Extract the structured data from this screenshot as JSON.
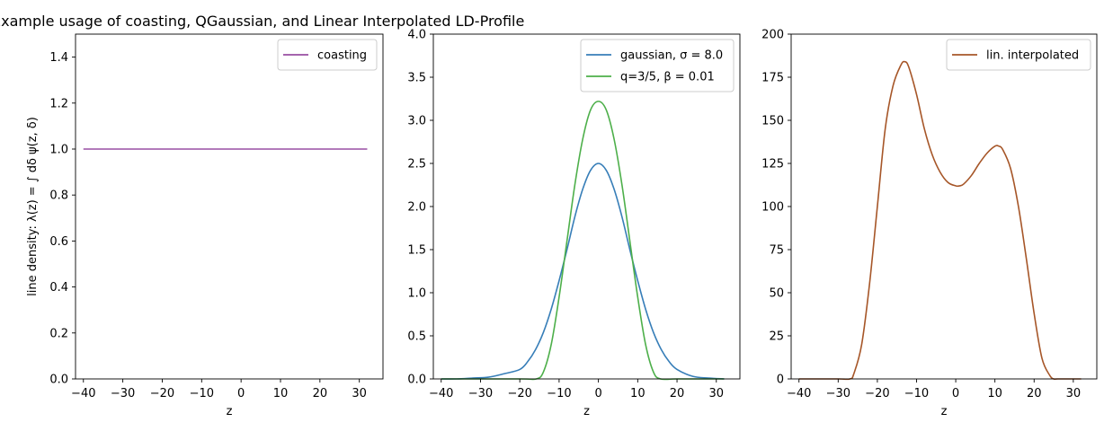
{
  "figure": {
    "title": "Example usage of coasting, QGaussian, and Linear Interpolated LD-Profile"
  },
  "chart_data": [
    {
      "type": "line",
      "xlabel": "z",
      "ylabel": "line density: λ(z) = ∫ dδ ψ(z, δ)",
      "xlim": [
        -42,
        36
      ],
      "ylim": [
        0,
        1.5
      ],
      "xticks": [
        -40,
        -30,
        -20,
        -10,
        0,
        10,
        20,
        30
      ],
      "yticks": [
        "0.0",
        "0.2",
        "0.4",
        "0.6",
        "0.8",
        "1.0",
        "1.2",
        "1.4"
      ],
      "legend": "top-right",
      "series": [
        {
          "name": "coasting",
          "color": "#984ea3",
          "x": [
            -40,
            32
          ],
          "y": [
            1.0,
            1.0
          ]
        }
      ]
    },
    {
      "type": "line",
      "xlabel": "z",
      "ylabel": "",
      "xlim": [
        -42,
        36
      ],
      "ylim": [
        0,
        4.0
      ],
      "xticks": [
        -40,
        -30,
        -20,
        -10,
        0,
        10,
        20,
        30
      ],
      "yticks": [
        "0.0",
        "0.5",
        "1.0",
        "1.5",
        "2.0",
        "2.5",
        "3.0",
        "3.5",
        "4.0"
      ],
      "legend": "top-right",
      "series": [
        {
          "name": "gaussian, σ = 8.0",
          "color": "#377eb8",
          "x": [
            -40,
            -36,
            -32,
            -28,
            -24,
            -20,
            -18,
            -16,
            -14,
            -12,
            -10,
            -8,
            -6,
            -4,
            -2,
            0,
            2,
            4,
            6,
            8,
            10,
            12,
            14,
            16,
            18,
            20,
            24,
            28,
            32
          ],
          "y": [
            0.0,
            0.0,
            0.01,
            0.02,
            0.06,
            0.11,
            0.2,
            0.34,
            0.54,
            0.81,
            1.14,
            1.5,
            1.88,
            2.2,
            2.42,
            2.5,
            2.42,
            2.2,
            1.88,
            1.5,
            1.14,
            0.81,
            0.54,
            0.34,
            0.2,
            0.11,
            0.03,
            0.01,
            0.0
          ]
        },
        {
          "name": "q=3/5, β = 0.01",
          "color": "#4daf4a",
          "x": [
            -40,
            -20,
            -15.8,
            -14,
            -12,
            -10,
            -8,
            -6,
            -4,
            -2,
            0,
            2,
            4,
            6,
            8,
            10,
            12,
            14,
            15.8,
            20,
            32
          ],
          "y": [
            0.0,
            0.0,
            0.0,
            0.08,
            0.4,
            0.95,
            1.6,
            2.25,
            2.78,
            3.12,
            3.22,
            3.12,
            2.78,
            2.25,
            1.6,
            0.95,
            0.4,
            0.08,
            0.0,
            0.0,
            0.0
          ]
        }
      ]
    },
    {
      "type": "line",
      "xlabel": "z",
      "ylabel": "",
      "xlim": [
        -42,
        36
      ],
      "ylim": [
        0,
        200
      ],
      "xticks": [
        -40,
        -30,
        -20,
        -10,
        0,
        10,
        20,
        30
      ],
      "yticks": [
        "0",
        "25",
        "50",
        "75",
        "100",
        "125",
        "150",
        "175",
        "200"
      ],
      "legend": "top-right",
      "series": [
        {
          "name": "lin. interpolated",
          "color": "#a65628",
          "x": [
            -40,
            -30,
            -27,
            -26,
            -24,
            -22,
            -20,
            -18,
            -16,
            -14,
            -13,
            -12,
            -10,
            -8,
            -6,
            -4,
            -2,
            0,
            1,
            2,
            4,
            6,
            8,
            10,
            11,
            12,
            14,
            16,
            18,
            20,
            22,
            24,
            25,
            26,
            30,
            32
          ],
          "y": [
            0,
            0,
            0,
            3,
            20,
            55,
            100,
            145,
            170,
            182,
            184,
            181,
            165,
            145,
            130,
            120,
            114,
            112,
            112,
            113,
            118,
            125,
            131,
            135,
            135,
            133,
            122,
            100,
            70,
            38,
            12,
            2,
            0,
            0,
            0,
            0
          ]
        }
      ]
    }
  ]
}
